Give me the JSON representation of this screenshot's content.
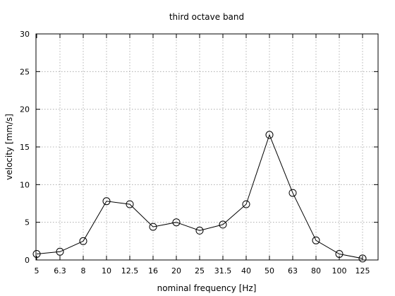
{
  "chart_data": {
    "type": "line",
    "title": "third octave band",
    "xlabel": "nominal frequency [Hz]",
    "ylabel": "velocity [mm/s]",
    "categories": [
      "5",
      "6.3",
      "8",
      "10",
      "12.5",
      "16",
      "20",
      "25",
      "31.5",
      "40",
      "50",
      "63",
      "80",
      "100",
      "125"
    ],
    "values": [
      0.8,
      1.1,
      2.5,
      7.8,
      7.4,
      4.4,
      5.0,
      3.9,
      4.7,
      7.4,
      16.6,
      8.9,
      2.6,
      0.8,
      0.2
    ],
    "ylim": [
      0,
      30
    ],
    "yticks": [
      "0",
      "5",
      "10",
      "15",
      "20",
      "25",
      "30"
    ],
    "grid": true,
    "marker": "open-circle"
  }
}
